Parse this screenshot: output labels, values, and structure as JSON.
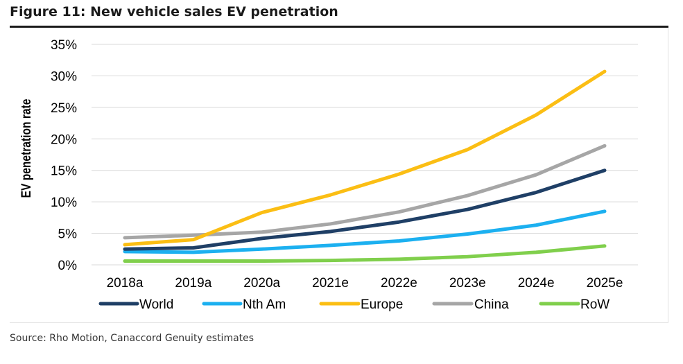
{
  "figure": {
    "title": "Figure 11: New vehicle sales EV penetration",
    "source": "Source: Rho Motion, Canaccord Genuity estimates"
  },
  "chart_data": {
    "type": "line",
    "title": "",
    "xlabel": "",
    "ylabel": "EV penetration rate",
    "ylim": [
      0,
      35
    ],
    "yticks": [
      0,
      5,
      10,
      15,
      20,
      25,
      30,
      35
    ],
    "ytick_labels": [
      "0%",
      "5%",
      "10%",
      "15%",
      "20%",
      "25%",
      "30%",
      "35%"
    ],
    "y_unit": "%",
    "grid": true,
    "legend_position": "bottom",
    "categories": [
      "2018a",
      "2019a",
      "2020a",
      "2021e",
      "2022e",
      "2023e",
      "2024e",
      "2025e"
    ],
    "series": [
      {
        "name": "World",
        "color": "#1f3f66",
        "values": [
          2.5,
          2.7,
          4.2,
          5.3,
          6.8,
          8.8,
          11.5,
          15.0
        ]
      },
      {
        "name": "Nth Am",
        "color": "#1cb0f0",
        "values": [
          2.1,
          2.0,
          2.5,
          3.1,
          3.8,
          4.9,
          6.3,
          8.5
        ]
      },
      {
        "name": "Europe",
        "color": "#fbbe14",
        "values": [
          3.2,
          4.0,
          8.3,
          11.1,
          14.4,
          18.3,
          23.8,
          30.7
        ]
      },
      {
        "name": "China",
        "color": "#a6a6a6",
        "values": [
          4.3,
          4.7,
          5.2,
          6.5,
          8.4,
          11.0,
          14.3,
          18.9
        ]
      },
      {
        "name": "RoW",
        "color": "#80cf4c",
        "values": [
          0.6,
          0.6,
          0.6,
          0.7,
          0.9,
          1.3,
          2.0,
          3.0
        ]
      }
    ]
  }
}
